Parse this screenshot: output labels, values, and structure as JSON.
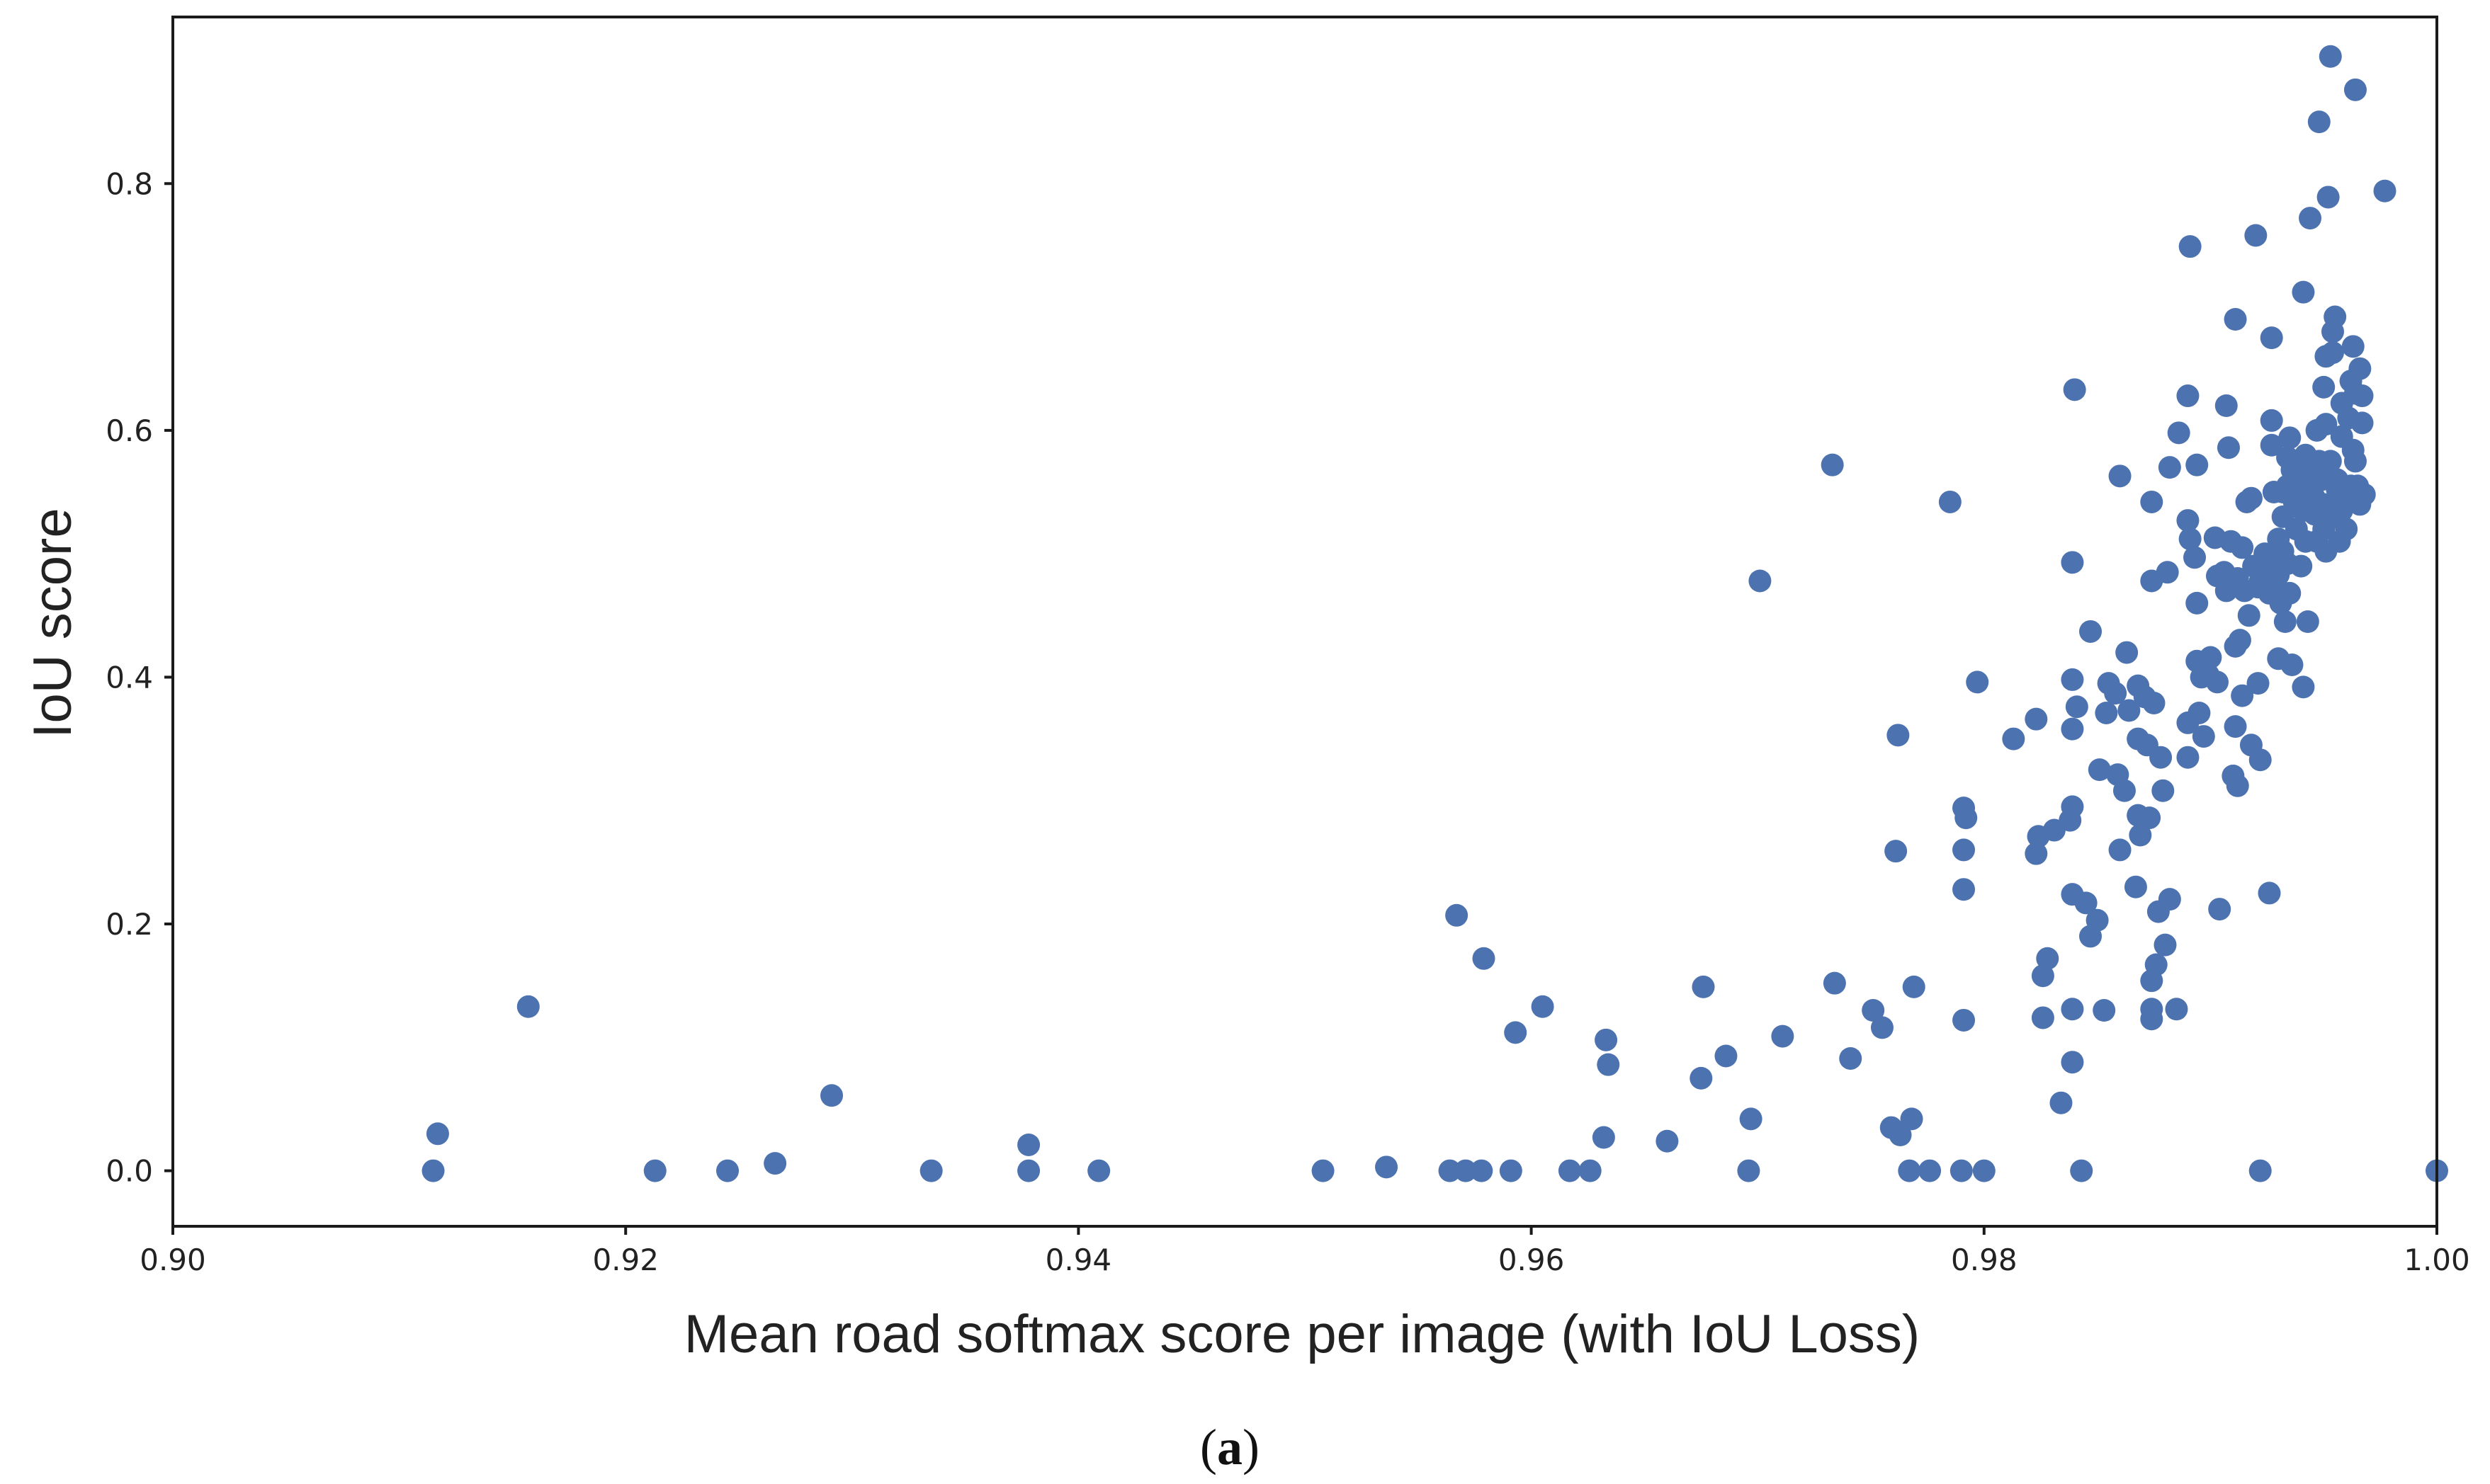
{
  "caption": {
    "open": "(",
    "letter": "a",
    "close": ")"
  },
  "chart_data": {
    "type": "scatter",
    "xlabel": "Mean road softmax score per image (with IoU Loss)",
    "ylabel": "IoU score",
    "xlim": [
      0.9,
      1.0
    ],
    "ylim": [
      -0.045,
      0.935
    ],
    "xticks": [
      {
        "value": 0.9,
        "label": "0.90"
      },
      {
        "value": 0.92,
        "label": "0.92"
      },
      {
        "value": 0.94,
        "label": "0.94"
      },
      {
        "value": 0.96,
        "label": "0.96"
      },
      {
        "value": 0.98,
        "label": "0.98"
      },
      {
        "value": 1.0,
        "label": "1.00"
      }
    ],
    "yticks": [
      {
        "value": 0.0,
        "label": "0.0"
      },
      {
        "value": 0.2,
        "label": "0.2"
      },
      {
        "value": 0.4,
        "label": "0.4"
      },
      {
        "value": 0.6,
        "label": "0.6"
      },
      {
        "value": 0.8,
        "label": "0.8"
      }
    ],
    "grid": false,
    "marker_color": "#4c72b0",
    "points": [
      [
        0.9115,
        0.0
      ],
      [
        0.9117,
        0.03
      ],
      [
        0.9157,
        0.133
      ],
      [
        0.9213,
        0.0
      ],
      [
        0.9245,
        0.0
      ],
      [
        0.9266,
        0.006
      ],
      [
        0.9291,
        0.061
      ],
      [
        0.9335,
        0.0
      ],
      [
        0.9378,
        0.0
      ],
      [
        0.9378,
        0.021
      ],
      [
        0.9409,
        0.0
      ],
      [
        0.9508,
        0.0
      ],
      [
        0.9536,
        0.003
      ],
      [
        0.9564,
        0.0
      ],
      [
        0.9567,
        0.207
      ],
      [
        0.9571,
        0.0
      ],
      [
        0.9578,
        0.0
      ],
      [
        0.9579,
        0.172
      ],
      [
        0.9591,
        0.0
      ],
      [
        0.9593,
        0.112
      ],
      [
        0.9605,
        0.133
      ],
      [
        0.9617,
        0.0
      ],
      [
        0.9626,
        0.0
      ],
      [
        0.9632,
        0.027
      ],
      [
        0.9633,
        0.106
      ],
      [
        0.9634,
        0.086
      ],
      [
        0.966,
        0.024
      ],
      [
        0.9675,
        0.075
      ],
      [
        0.9676,
        0.149
      ],
      [
        0.9686,
        0.093
      ],
      [
        0.9696,
        0.0
      ],
      [
        0.9697,
        0.042
      ],
      [
        0.9701,
        0.478
      ],
      [
        0.9711,
        0.109
      ],
      [
        0.9733,
        0.572
      ],
      [
        0.9734,
        0.152
      ],
      [
        0.9741,
        0.091
      ],
      [
        0.9751,
        0.13
      ],
      [
        0.9755,
        0.116
      ],
      [
        0.9759,
        0.035
      ],
      [
        0.9761,
        0.259
      ],
      [
        0.9762,
        0.353
      ],
      [
        0.9763,
        0.029
      ],
      [
        0.9767,
        0.0
      ],
      [
        0.9768,
        0.042
      ],
      [
        0.9769,
        0.149
      ],
      [
        0.9776,
        0.0
      ],
      [
        0.9785,
        0.542
      ],
      [
        0.979,
        0.0
      ],
      [
        0.9791,
        0.122
      ],
      [
        0.9791,
        0.228
      ],
      [
        0.9791,
        0.26
      ],
      [
        0.9791,
        0.294
      ],
      [
        0.9792,
        0.286
      ],
      [
        0.9797,
        0.396
      ],
      [
        0.98,
        0.0
      ],
      [
        0.9813,
        0.35
      ],
      [
        0.9823,
        0.366
      ],
      [
        0.9823,
        0.257
      ],
      [
        0.9824,
        0.271
      ],
      [
        0.9826,
        0.124
      ],
      [
        0.9826,
        0.158
      ],
      [
        0.9828,
        0.172
      ],
      [
        0.9831,
        0.276
      ],
      [
        0.9834,
        0.055
      ],
      [
        0.9838,
        0.284
      ],
      [
        0.9839,
        0.295
      ],
      [
        0.9839,
        0.131
      ],
      [
        0.9839,
        0.088
      ],
      [
        0.9839,
        0.224
      ],
      [
        0.9839,
        0.358
      ],
      [
        0.9839,
        0.398
      ],
      [
        0.9839,
        0.493
      ],
      [
        0.984,
        0.633
      ],
      [
        0.9841,
        0.376
      ],
      [
        0.9843,
        0.0
      ],
      [
        0.9845,
        0.217
      ],
      [
        0.9847,
        0.19
      ],
      [
        0.9847,
        0.437
      ],
      [
        0.985,
        0.203
      ],
      [
        0.9851,
        0.325
      ],
      [
        0.9853,
        0.13
      ],
      [
        0.9854,
        0.371
      ],
      [
        0.9855,
        0.395
      ],
      [
        0.9858,
        0.387
      ],
      [
        0.9859,
        0.321
      ],
      [
        0.986,
        0.563
      ],
      [
        0.986,
        0.26
      ],
      [
        0.9862,
        0.308
      ],
      [
        0.9863,
        0.42
      ],
      [
        0.9864,
        0.373
      ],
      [
        0.9867,
        0.23
      ],
      [
        0.9868,
        0.393
      ],
      [
        0.9868,
        0.288
      ],
      [
        0.9868,
        0.35
      ],
      [
        0.9869,
        0.272
      ],
      [
        0.9871,
        0.384
      ],
      [
        0.9872,
        0.345
      ],
      [
        0.9873,
        0.286
      ],
      [
        0.9874,
        0.154
      ],
      [
        0.9874,
        0.123
      ],
      [
        0.9874,
        0.131
      ],
      [
        0.9874,
        0.478
      ],
      [
        0.9874,
        0.542
      ],
      [
        0.9875,
        0.379
      ],
      [
        0.9876,
        0.167
      ],
      [
        0.9877,
        0.21
      ],
      [
        0.9878,
        0.335
      ],
      [
        0.9879,
        0.308
      ],
      [
        0.988,
        0.183
      ],
      [
        0.9881,
        0.485
      ],
      [
        0.9882,
        0.22
      ],
      [
        0.9882,
        0.57
      ],
      [
        0.9885,
        0.131
      ],
      [
        0.9886,
        0.598
      ],
      [
        0.989,
        0.628
      ],
      [
        0.989,
        0.527
      ],
      [
        0.989,
        0.363
      ],
      [
        0.989,
        0.335
      ],
      [
        0.9891,
        0.512
      ],
      [
        0.9891,
        0.749
      ],
      [
        0.9893,
        0.497
      ],
      [
        0.9894,
        0.572
      ],
      [
        0.9894,
        0.46
      ],
      [
        0.9894,
        0.413
      ],
      [
        0.9895,
        0.371
      ],
      [
        0.9896,
        0.4
      ],
      [
        0.9897,
        0.352
      ],
      [
        0.9899,
        0.402
      ],
      [
        0.99,
        0.416
      ],
      [
        0.9902,
        0.513
      ],
      [
        0.9903,
        0.482
      ],
      [
        0.9903,
        0.396
      ],
      [
        0.9904,
        0.212
      ],
      [
        0.9906,
        0.485
      ],
      [
        0.9907,
        0.62
      ],
      [
        0.9907,
        0.47
      ],
      [
        0.9908,
        0.586
      ],
      [
        0.9909,
        0.51
      ],
      [
        0.991,
        0.32
      ],
      [
        0.9911,
        0.69
      ],
      [
        0.9911,
        0.425
      ],
      [
        0.9911,
        0.36
      ],
      [
        0.9912,
        0.312
      ],
      [
        0.9912,
        0.48
      ],
      [
        0.9913,
        0.43
      ],
      [
        0.9914,
        0.385
      ],
      [
        0.9914,
        0.505
      ],
      [
        0.9915,
        0.47
      ],
      [
        0.9916,
        0.542
      ],
      [
        0.9917,
        0.45
      ],
      [
        0.9918,
        0.345
      ],
      [
        0.9918,
        0.545
      ],
      [
        0.9919,
        0.49
      ],
      [
        0.992,
        0.758
      ],
      [
        0.9921,
        0.473
      ],
      [
        0.9921,
        0.395
      ],
      [
        0.9922,
        0.333
      ],
      [
        0.9922,
        0.0
      ],
      [
        0.9922,
        0.478
      ],
      [
        0.9924,
        0.5
      ],
      [
        0.9925,
        0.485
      ],
      [
        0.9926,
        0.468
      ],
      [
        0.9926,
        0.225
      ],
      [
        0.9927,
        0.675
      ],
      [
        0.9927,
        0.608
      ],
      [
        0.9927,
        0.588
      ],
      [
        0.9928,
        0.55
      ],
      [
        0.9928,
        0.495
      ],
      [
        0.9929,
        0.47
      ],
      [
        0.993,
        0.512
      ],
      [
        0.993,
        0.483
      ],
      [
        0.993,
        0.415
      ],
      [
        0.9931,
        0.46
      ],
      [
        0.9932,
        0.55
      ],
      [
        0.9932,
        0.53
      ],
      [
        0.9932,
        0.502
      ],
      [
        0.9933,
        0.445
      ],
      [
        0.9934,
        0.492
      ],
      [
        0.9934,
        0.578
      ],
      [
        0.9934,
        0.555
      ],
      [
        0.9935,
        0.468
      ],
      [
        0.9935,
        0.594
      ],
      [
        0.9936,
        0.568
      ],
      [
        0.9936,
        0.41
      ],
      [
        0.9937,
        0.542
      ],
      [
        0.9938,
        0.52
      ],
      [
        0.9939,
        0.558
      ],
      [
        0.994,
        0.49
      ],
      [
        0.9941,
        0.712
      ],
      [
        0.9941,
        0.535
      ],
      [
        0.9941,
        0.392
      ],
      [
        0.9942,
        0.51
      ],
      [
        0.9942,
        0.58
      ],
      [
        0.9943,
        0.445
      ],
      [
        0.9944,
        0.772
      ],
      [
        0.9944,
        0.565
      ],
      [
        0.9945,
        0.55
      ],
      [
        0.9946,
        0.532
      ],
      [
        0.9946,
        0.545
      ],
      [
        0.9947,
        0.6
      ],
      [
        0.9947,
        0.51
      ],
      [
        0.9948,
        0.85
      ],
      [
        0.9948,
        0.575
      ],
      [
        0.9949,
        0.56
      ],
      [
        0.995,
        0.52
      ],
      [
        0.995,
        0.635
      ],
      [
        0.995,
        0.54
      ],
      [
        0.9951,
        0.66
      ],
      [
        0.9951,
        0.605
      ],
      [
        0.9951,
        0.502
      ],
      [
        0.9952,
        0.789
      ],
      [
        0.9953,
        0.903
      ],
      [
        0.9953,
        0.575
      ],
      [
        0.9954,
        0.68
      ],
      [
        0.9954,
        0.663
      ],
      [
        0.9955,
        0.692
      ],
      [
        0.9955,
        0.53
      ],
      [
        0.9956,
        0.56
      ],
      [
        0.9956,
        0.552
      ],
      [
        0.9957,
        0.51
      ],
      [
        0.9958,
        0.535
      ],
      [
        0.9958,
        0.622
      ],
      [
        0.9958,
        0.595
      ],
      [
        0.9959,
        0.545
      ],
      [
        0.996,
        0.52
      ],
      [
        0.9961,
        0.61
      ],
      [
        0.9962,
        0.64
      ],
      [
        0.9962,
        0.555
      ],
      [
        0.9963,
        0.668
      ],
      [
        0.9963,
        0.584
      ],
      [
        0.9964,
        0.876
      ],
      [
        0.9964,
        0.63
      ],
      [
        0.9964,
        0.575
      ],
      [
        0.9965,
        0.555
      ],
      [
        0.9966,
        0.65
      ],
      [
        0.9966,
        0.54
      ],
      [
        0.9967,
        0.606
      ],
      [
        0.9967,
        0.628
      ],
      [
        0.9968,
        0.548
      ],
      [
        0.9977,
        0.794
      ],
      [
        1.0,
        0.0
      ]
    ]
  }
}
